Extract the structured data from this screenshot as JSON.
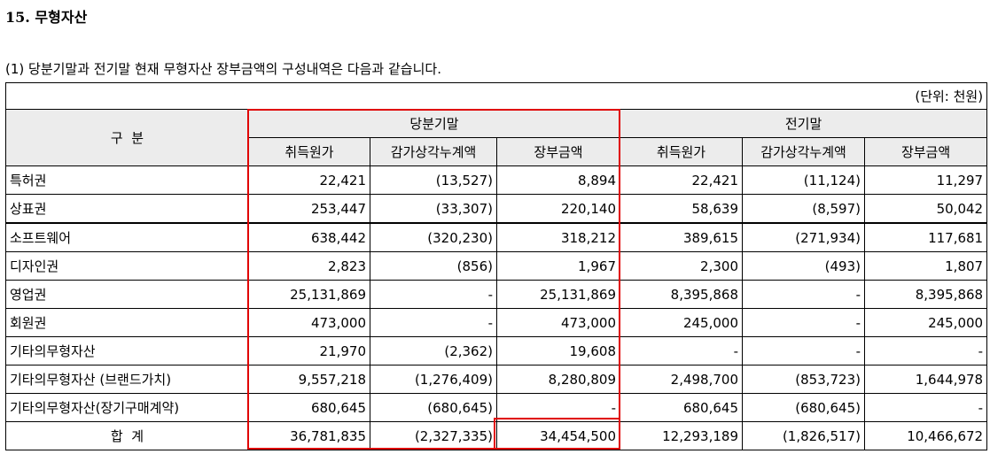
{
  "title": "15. 무형자산",
  "intro": "(1) 당분기말과 전기말 현재 무형자산 장부금액의 구성내역은 다음과 같습니다.",
  "unit": "(단위: 천원)",
  "header": {
    "category": "구  분",
    "current_period": "당분기말",
    "prior_period": "전기말",
    "columns": [
      "취득원가",
      "감가상각누계액",
      "장부금액",
      "취득원가",
      "감가상각누계액",
      "장부금액"
    ]
  },
  "rows": [
    {
      "label": "특허권",
      "values": [
        "22,421",
        "(13,527)",
        "8,894",
        "22,421",
        "(11,124)",
        "11,297"
      ]
    },
    {
      "label": "상표권",
      "values": [
        "253,447",
        "(33,307)",
        "220,140",
        "58,639",
        "(8,597)",
        "50,042"
      ]
    },
    {
      "label": "소프트웨어",
      "values": [
        "638,442",
        "(320,230)",
        "318,212",
        "389,615",
        "(271,934)",
        "117,681"
      ]
    },
    {
      "label": "디자인권",
      "values": [
        "2,823",
        "(856)",
        "1,967",
        "2,300",
        "(493)",
        "1,807"
      ]
    },
    {
      "label": "영업권",
      "values": [
        "25,131,869",
        "-",
        "25,131,869",
        "8,395,868",
        "-",
        "8,395,868"
      ]
    },
    {
      "label": "회원권",
      "values": [
        "473,000",
        "-",
        "473,000",
        "245,000",
        "-",
        "245,000"
      ]
    },
    {
      "label": "기타의무형자산",
      "values": [
        "21,970",
        "(2,362)",
        "19,608",
        "-",
        "-",
        "-"
      ]
    },
    {
      "label": "기타의무형자산 (브랜드가치)",
      "values": [
        "9,557,218",
        "(1,276,409)",
        "8,280,809",
        "2,498,700",
        "(853,723)",
        "1,644,978"
      ]
    },
    {
      "label": "기타의무형자산(장기구매계약)",
      "values": [
        "680,645",
        "(680,645)",
        "-",
        "680,645",
        "(680,645)",
        "-"
      ]
    }
  ],
  "total": {
    "label": "합  계",
    "values": [
      "36,781,835",
      "(2,327,335)",
      "34,454,500",
      "12,293,189",
      "(1,826,517)",
      "10,466,672"
    ]
  },
  "highlight_color": "#e00000"
}
